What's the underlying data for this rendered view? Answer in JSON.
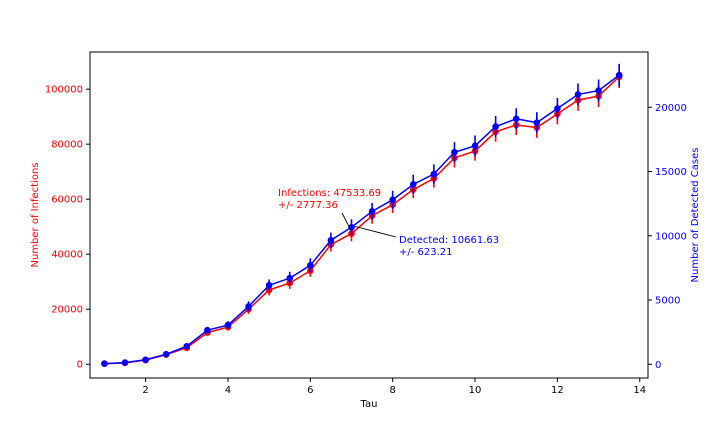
{
  "chart_data": {
    "type": "line",
    "xlabel": "Tau",
    "ylabel_left": "Number of Infections",
    "ylabel_right": "Number of Detected Cases",
    "xlim": [
      0.65,
      14.2
    ],
    "ylim_left": [
      -5000,
      113500
    ],
    "ylim_right": [
      -1070,
      24300
    ],
    "x_ticks": [
      2,
      4,
      6,
      8,
      10,
      12,
      14
    ],
    "y_left_ticks": [
      0,
      20000,
      40000,
      60000,
      80000,
      100000
    ],
    "y_right_ticks": [
      0,
      5000,
      10000,
      15000,
      20000
    ],
    "x": [
      1,
      1.5,
      2,
      2.5,
      3,
      3.5,
      4,
      4.5,
      5,
      5.5,
      6,
      6.5,
      7,
      7.5,
      8,
      8.5,
      9,
      9.5,
      10,
      10.5,
      11,
      11.5,
      12,
      12.5,
      13,
      13.5
    ],
    "series": [
      {
        "name": "Infections",
        "axis": "left",
        "color": "#ff0000",
        "values": [
          200,
          500,
          1500,
          3500,
          6000,
          11500,
          13500,
          20000,
          27000,
          29500,
          34000,
          43500,
          47500,
          54000,
          58000,
          63500,
          67500,
          75000,
          77500,
          84500,
          87000,
          86000,
          91000,
          96000,
          97500,
          104500
        ],
        "errors": [
          300,
          300,
          400,
          500,
          700,
          1000,
          1200,
          1700,
          2000,
          2100,
          2200,
          2500,
          2800,
          2900,
          3000,
          3100,
          3300,
          3500,
          3500,
          3600,
          3700,
          3700,
          3800,
          3900,
          4000,
          4100
        ]
      },
      {
        "name": "Detected",
        "axis": "right",
        "color": "#0000ff",
        "values": [
          50,
          130,
          350,
          780,
          1400,
          2650,
          3050,
          4500,
          6150,
          6700,
          7700,
          9650,
          10660,
          11900,
          12800,
          14000,
          14800,
          16500,
          17000,
          18500,
          19100,
          18800,
          19900,
          21000,
          21300,
          22500
        ],
        "errors": [
          60,
          60,
          80,
          120,
          160,
          260,
          300,
          400,
          450,
          500,
          550,
          600,
          620,
          650,
          700,
          750,
          760,
          780,
          800,
          820,
          820,
          820,
          830,
          850,
          860,
          880
        ]
      }
    ],
    "annotations": [
      {
        "text_line1": "Infections: 47533.69",
        "text_line2": "+/- 2777.36",
        "point_x": 7,
        "point_y": 47533.69,
        "color": "#ff0000"
      },
      {
        "text_line1": "Detected: 10661.63",
        "text_line2": "+/- 623.21",
        "point_x": 7,
        "point_y": 10661.63,
        "color": "#0000ff"
      }
    ],
    "grid": false
  }
}
